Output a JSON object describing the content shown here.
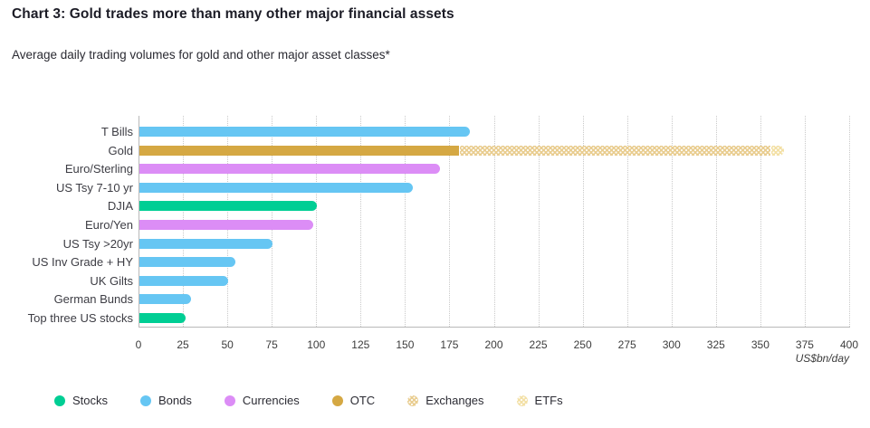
{
  "header": {
    "title": "Chart 3: Gold trades more than many other major financial assets",
    "subtitle": "Average daily trading volumes for gold and other major asset classes*"
  },
  "chart_data": {
    "type": "bar",
    "orientation": "horizontal",
    "title": "Chart 3: Gold trades more than many other major financial assets",
    "subtitle": "Average daily trading volumes for gold and other major asset classes*",
    "unit_label": "US$bn/day",
    "xlim": [
      0,
      400
    ],
    "x_ticks": [
      0,
      25,
      50,
      75,
      100,
      125,
      150,
      175,
      200,
      225,
      250,
      275,
      300,
      325,
      350,
      375,
      400
    ],
    "grid": "dotted-vertical",
    "legend_position": "bottom",
    "categories": [
      "T Bills",
      "Gold",
      "Euro/Sterling",
      "US Tsy 7-10 yr",
      "DJIA",
      "Euro/Yen",
      "US Tsy >20yr",
      "US Inv Grade + HY",
      "UK Gilts",
      "German Bunds",
      "Top three US stocks"
    ],
    "bars": [
      {
        "category": "T Bills",
        "segments": [
          {
            "series": "Bonds",
            "value": 186
          }
        ]
      },
      {
        "category": "Gold",
        "segments": [
          {
            "series": "OTC",
            "value": 180
          },
          {
            "series": "Exchanges",
            "value": 175
          },
          {
            "series": "ETFs",
            "value": 8
          }
        ]
      },
      {
        "category": "Euro/Sterling",
        "segments": [
          {
            "series": "Currencies",
            "value": 169
          }
        ]
      },
      {
        "category": "US Tsy 7-10 yr",
        "segments": [
          {
            "series": "Bonds",
            "value": 154
          }
        ]
      },
      {
        "category": "DJIA",
        "segments": [
          {
            "series": "Stocks",
            "value": 100
          }
        ]
      },
      {
        "category": "Euro/Yen",
        "segments": [
          {
            "series": "Currencies",
            "value": 98
          }
        ]
      },
      {
        "category": "US Tsy >20yr",
        "segments": [
          {
            "series": "Bonds",
            "value": 75
          }
        ]
      },
      {
        "category": "US Inv Grade + HY",
        "segments": [
          {
            "series": "Bonds",
            "value": 54
          }
        ]
      },
      {
        "category": "UK Gilts",
        "segments": [
          {
            "series": "Bonds",
            "value": 50
          }
        ]
      },
      {
        "category": "German Bunds",
        "segments": [
          {
            "series": "Bonds",
            "value": 29
          }
        ]
      },
      {
        "category": "Top three US stocks",
        "segments": [
          {
            "series": "Stocks",
            "value": 26
          }
        ]
      }
    ],
    "legend": [
      {
        "label": "Stocks",
        "color": "#00ce94",
        "pattern": "solid"
      },
      {
        "label": "Bonds",
        "color": "#66c6f3",
        "pattern": "solid"
      },
      {
        "label": "Currencies",
        "color": "#dc8df6",
        "pattern": "solid"
      },
      {
        "label": "OTC",
        "color": "#d5a843",
        "pattern": "solid"
      },
      {
        "label": "Exchanges",
        "color": "#e9cd90",
        "pattern": "dotted"
      },
      {
        "label": "ETFs",
        "color": "#f3e0a6",
        "pattern": "dotted"
      }
    ]
  }
}
